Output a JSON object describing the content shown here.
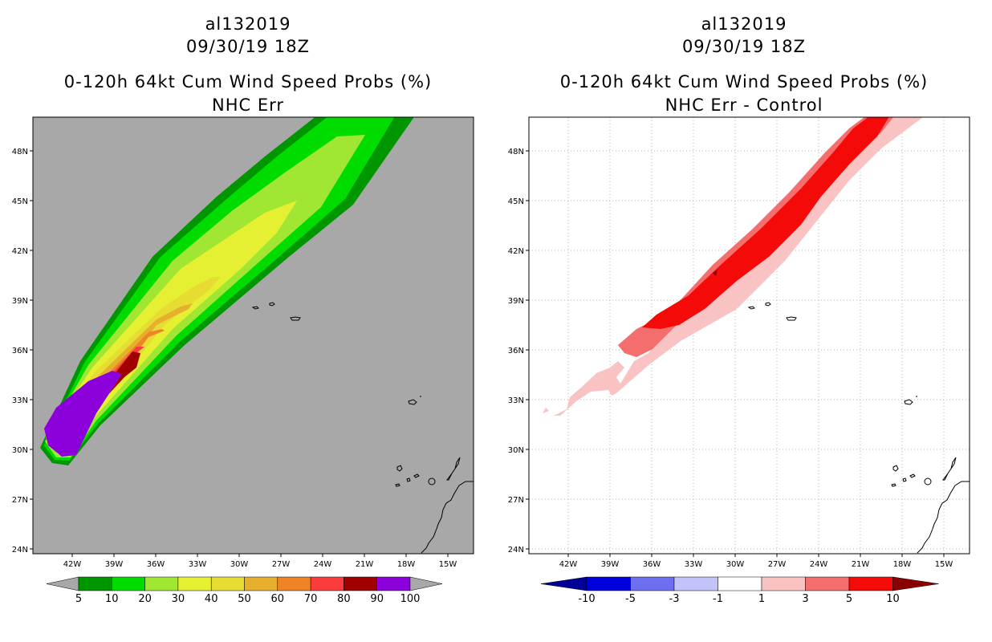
{
  "left": {
    "title_storm": "al132019",
    "title_date": "09/30/19 18Z",
    "title_product": "0-120h 64kt Cum Wind Speed Probs (%)",
    "title_sub": "NHC Err",
    "background": "#a8a8a8",
    "colorbar": {
      "labels": [
        "5",
        "10",
        "20",
        "30",
        "40",
        "50",
        "60",
        "70",
        "80",
        "90",
        "100"
      ],
      "colors": [
        "#009600",
        "#00dc00",
        "#a0e632",
        "#e6f032",
        "#e6dc32",
        "#e6af2d",
        "#f08228",
        "#fa3c3c",
        "#a00000",
        "#8c00dc"
      ],
      "extend_color": "#a8a8a8"
    }
  },
  "right": {
    "title_storm": "al132019",
    "title_date": "09/30/19 18Z",
    "title_product": "0-120h 64kt Cum Wind Speed Probs (%)",
    "title_sub": "NHC Err - Control",
    "background": "#ffffff",
    "colorbar": {
      "labels": [
        "-10",
        "-5",
        "-3",
        "-1",
        "1",
        "3",
        "5",
        "10"
      ],
      "colors": [
        "#0000dc",
        "#6e6ef0",
        "#c3c3fa",
        "#ffffff",
        "#fac3c3",
        "#f56e6e",
        "#f50a0a"
      ],
      "extend_low": "#000096",
      "extend_high": "#8c0000"
    }
  },
  "axes": {
    "lat_labels": [
      "48N",
      "45N",
      "42N",
      "39N",
      "36N",
      "33N",
      "30N",
      "27N",
      "24N"
    ],
    "lon_labels": [
      "42W",
      "39W",
      "36W",
      "33W",
      "30W",
      "27W",
      "24W",
      "21W",
      "18W",
      "15W"
    ]
  }
}
